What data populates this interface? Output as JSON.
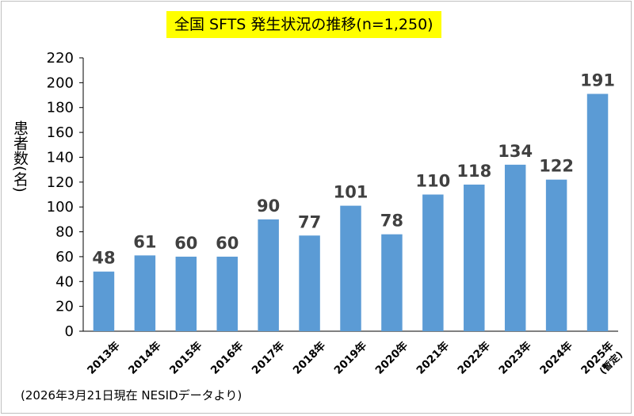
{
  "chart_data": {
    "type": "bar",
    "title": "全国 SFTS 発生状況の推移(n=1,250)",
    "ylabel": "患者数(名)",
    "xlabel": "",
    "categories": [
      "2013年",
      "2014年",
      "2015年",
      "2016年",
      "2017年",
      "2018年",
      "2019年",
      "2020年",
      "2021年",
      "2022年",
      "2023年",
      "2024年",
      "2025年"
    ],
    "category_note": {
      "2025年": "(暫定)"
    },
    "values": [
      48,
      61,
      60,
      60,
      90,
      77,
      101,
      78,
      110,
      118,
      134,
      122,
      191
    ],
    "ylim": [
      0,
      220
    ],
    "yticks": [
      0,
      20,
      40,
      60,
      80,
      100,
      120,
      140,
      160,
      180,
      200,
      220
    ],
    "grid": false,
    "legend": "none",
    "bar_color": "#5b9bd5",
    "label_color": "#404040"
  },
  "footnote": "(2026年3月21日現在 NESIDデータより)"
}
